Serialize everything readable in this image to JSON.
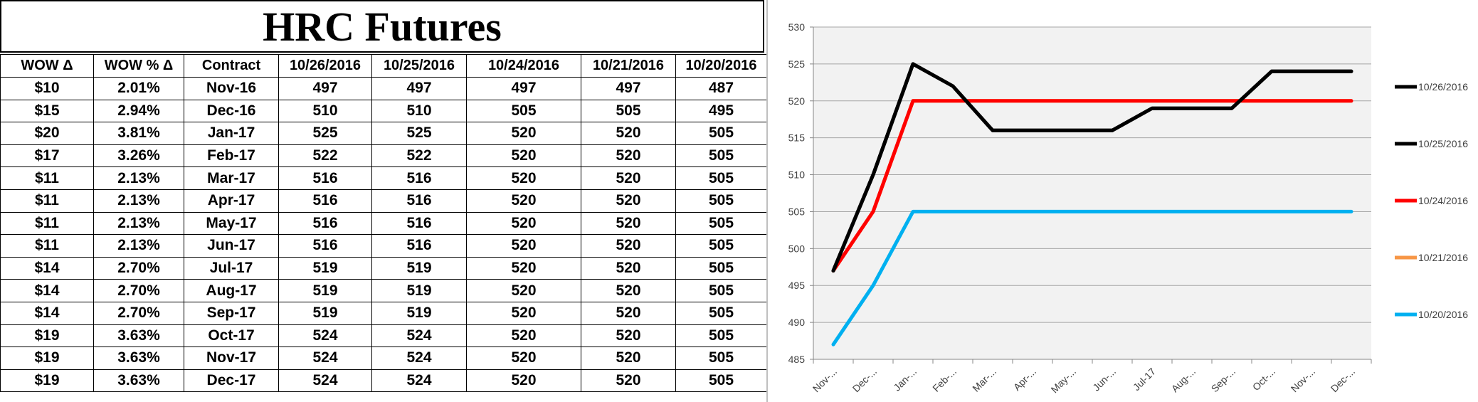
{
  "table": {
    "title": "HRC Futures",
    "headers": [
      "WOW Δ",
      "WOW % Δ",
      "Contract",
      "10/26/2016",
      "10/25/2016",
      "10/24/2016",
      "10/21/2016",
      "10/20/2016"
    ],
    "rows": [
      [
        "$10",
        "2.01%",
        "Nov-16",
        "497",
        "497",
        "497",
        "497",
        "487"
      ],
      [
        "$15",
        "2.94%",
        "Dec-16",
        "510",
        "510",
        "505",
        "505",
        "495"
      ],
      [
        "$20",
        "3.81%",
        "Jan-17",
        "525",
        "525",
        "520",
        "520",
        "505"
      ],
      [
        "$17",
        "3.26%",
        "Feb-17",
        "522",
        "522",
        "520",
        "520",
        "505"
      ],
      [
        "$11",
        "2.13%",
        "Mar-17",
        "516",
        "516",
        "520",
        "520",
        "505"
      ],
      [
        "$11",
        "2.13%",
        "Apr-17",
        "516",
        "516",
        "520",
        "520",
        "505"
      ],
      [
        "$11",
        "2.13%",
        "May-17",
        "516",
        "516",
        "520",
        "520",
        "505"
      ],
      [
        "$11",
        "2.13%",
        "Jun-17",
        "516",
        "516",
        "520",
        "520",
        "505"
      ],
      [
        "$14",
        "2.70%",
        "Jul-17",
        "519",
        "519",
        "520",
        "520",
        "505"
      ],
      [
        "$14",
        "2.70%",
        "Aug-17",
        "519",
        "519",
        "520",
        "520",
        "505"
      ],
      [
        "$14",
        "2.70%",
        "Sep-17",
        "519",
        "519",
        "520",
        "520",
        "505"
      ],
      [
        "$19",
        "3.63%",
        "Oct-17",
        "524",
        "524",
        "520",
        "520",
        "505"
      ],
      [
        "$19",
        "3.63%",
        "Nov-17",
        "524",
        "524",
        "520",
        "520",
        "505"
      ],
      [
        "$19",
        "3.63%",
        "Dec-17",
        "524",
        "524",
        "520",
        "520",
        "505"
      ]
    ]
  },
  "chart_data": {
    "type": "line",
    "title": "",
    "xlabel": "",
    "ylabel": "",
    "x_tick_labels": [
      "Nov-...",
      "Dec-...",
      "Jan-...",
      "Feb-...",
      "Mar-...",
      "Apr-...",
      "May-...",
      "Jun-...",
      "Jul-17",
      "Aug-...",
      "Sep-...",
      "Oct-...",
      "Nov-...",
      "Dec-..."
    ],
    "categories": [
      "Nov-16",
      "Dec-16",
      "Jan-17",
      "Feb-17",
      "Mar-17",
      "Apr-17",
      "May-17",
      "Jun-17",
      "Jul-17",
      "Aug-17",
      "Sep-17",
      "Oct-17",
      "Nov-17",
      "Dec-17"
    ],
    "ylim": [
      485,
      530
    ],
    "y_ticks": [
      485,
      490,
      495,
      500,
      505,
      510,
      515,
      520,
      525,
      530
    ],
    "grid": true,
    "plot_background": "#f2f2f2",
    "legend_position": "right",
    "series": [
      {
        "name": "10/26/2016",
        "color": "#000000",
        "values": [
          497,
          510,
          525,
          522,
          516,
          516,
          516,
          516,
          519,
          519,
          519,
          524,
          524,
          524
        ]
      },
      {
        "name": "10/25/2016",
        "color": "#000000",
        "values": [
          497,
          510,
          525,
          522,
          516,
          516,
          516,
          516,
          519,
          519,
          519,
          524,
          524,
          524
        ]
      },
      {
        "name": "10/24/2016",
        "color": "#ff0000",
        "values": [
          497,
          505,
          520,
          520,
          520,
          520,
          520,
          520,
          520,
          520,
          520,
          520,
          520,
          520
        ]
      },
      {
        "name": "10/21/2016",
        "color": "#f79646",
        "values": [
          497,
          505,
          520,
          520,
          520,
          520,
          520,
          520,
          520,
          520,
          520,
          520,
          520,
          520
        ]
      },
      {
        "name": "10/20/2016",
        "color": "#00b0f0",
        "values": [
          487,
          495,
          505,
          505,
          505,
          505,
          505,
          505,
          505,
          505,
          505,
          505,
          505,
          505
        ]
      }
    ]
  }
}
